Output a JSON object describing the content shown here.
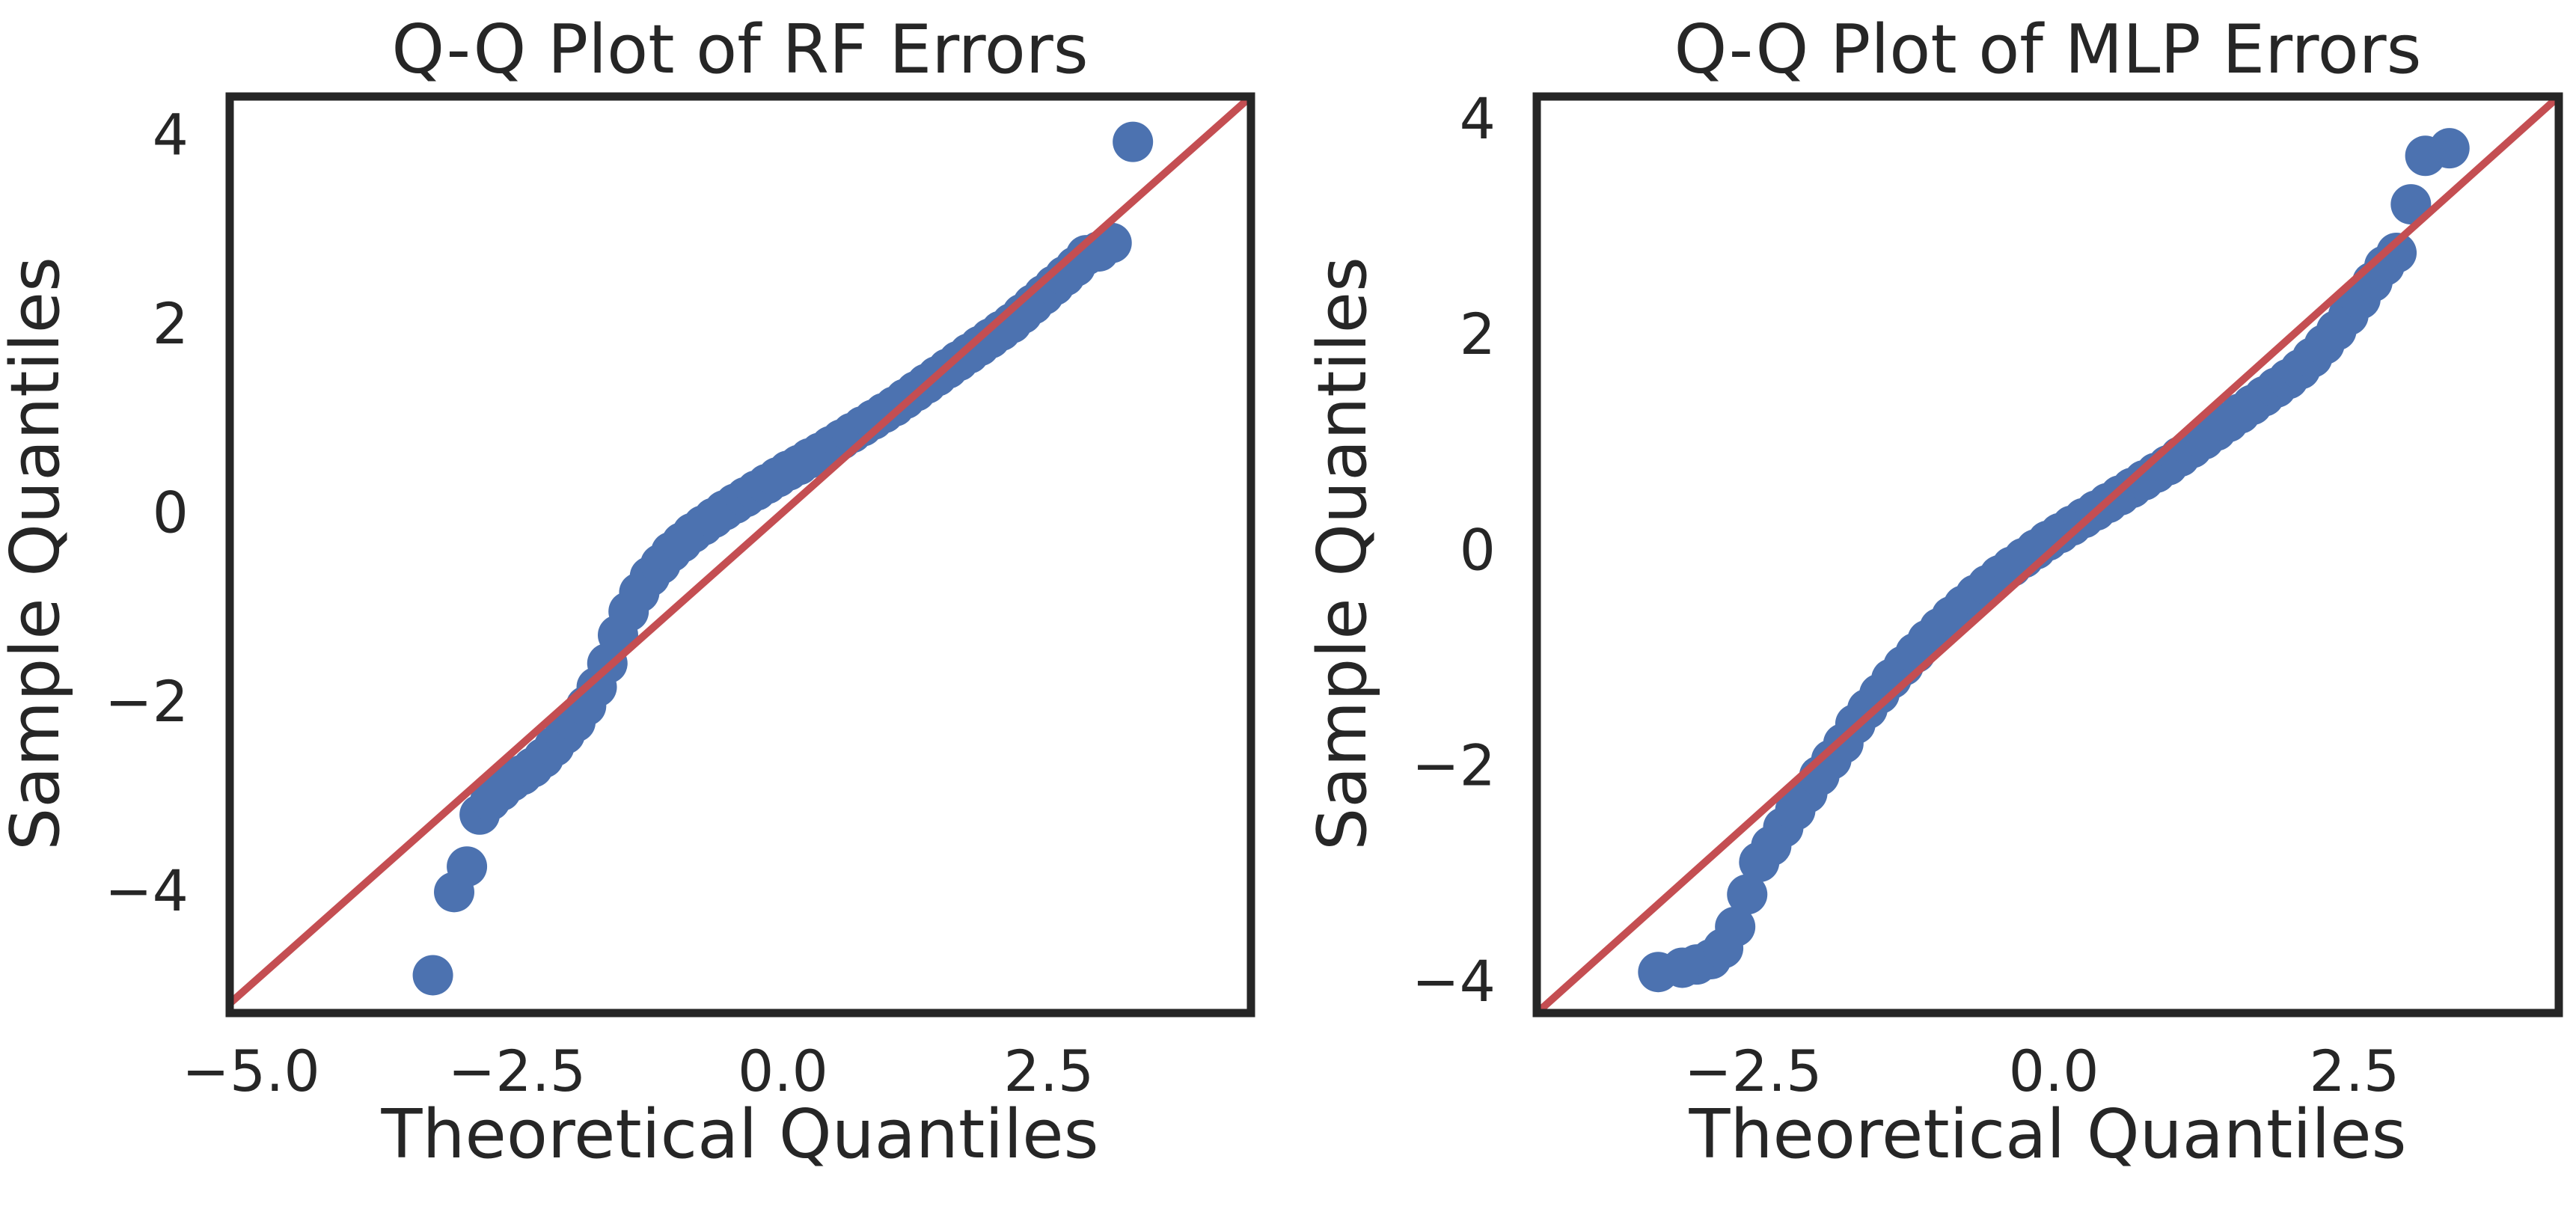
{
  "figure": {
    "background": "#ffffff",
    "axis_color": "#262626"
  },
  "chart_data": [
    {
      "type": "scatter",
      "title": "Q-Q Plot of RF Errors",
      "xlabel": "Theoretical Quantiles",
      "ylabel": "Sample Quantiles",
      "xlim": [
        -5.2,
        4.4
      ],
      "ylim": [
        -5.3,
        4.4
      ],
      "xticks": [
        -5.0,
        -2.5,
        0.0,
        2.5
      ],
      "xtick_labels": [
        "−5.0",
        "−2.5",
        "0.0",
        "2.5"
      ],
      "yticks": [
        -4,
        -2,
        0,
        2,
        4
      ],
      "ytick_labels": [
        "−4",
        "−2",
        "0",
        "2",
        "4"
      ],
      "grid": false,
      "point_color": "#4c72b0",
      "line_color": "#c44e52",
      "reference_line": {
        "slope": 1,
        "intercept": 0
      },
      "points": {
        "x": [
          -3.29,
          -3.09,
          -2.97,
          -2.85,
          -2.75,
          -2.65,
          -2.55,
          -2.45,
          -2.35,
          -2.25,
          -2.15,
          -2.05,
          -1.95,
          -1.85,
          -1.75,
          -1.65,
          -1.55,
          -1.45,
          -1.35,
          -1.25,
          -1.15,
          -1.05,
          -0.95,
          -0.85,
          -0.75,
          -0.65,
          -0.55,
          -0.45,
          -0.35,
          -0.25,
          -0.15,
          -0.05,
          0.05,
          0.15,
          0.25,
          0.35,
          0.45,
          0.55,
          0.65,
          0.75,
          0.85,
          0.95,
          1.05,
          1.15,
          1.25,
          1.35,
          1.45,
          1.55,
          1.65,
          1.75,
          1.85,
          1.95,
          2.05,
          2.15,
          2.25,
          2.35,
          2.45,
          2.55,
          2.65,
          2.75,
          2.85,
          2.97,
          3.09,
          3.29
        ],
        "y": [
          -4.9,
          -4.02,
          -3.75,
          -3.2,
          -3.05,
          -2.95,
          -2.85,
          -2.78,
          -2.7,
          -2.6,
          -2.48,
          -2.35,
          -2.22,
          -2.05,
          -1.85,
          -1.6,
          -1.3,
          -1.05,
          -0.85,
          -0.68,
          -0.55,
          -0.42,
          -0.32,
          -0.22,
          -0.14,
          -0.06,
          0.02,
          0.09,
          0.16,
          0.23,
          0.3,
          0.37,
          0.44,
          0.5,
          0.57,
          0.63,
          0.7,
          0.77,
          0.84,
          0.91,
          0.98,
          1.05,
          1.12,
          1.2,
          1.28,
          1.36,
          1.44,
          1.52,
          1.6,
          1.68,
          1.76,
          1.84,
          1.92,
          2.0,
          2.1,
          2.2,
          2.3,
          2.4,
          2.5,
          2.6,
          2.72,
          2.76,
          2.85,
          3.92
        ]
      }
    },
    {
      "type": "scatter",
      "title": "Q-Q Plot of MLP Errors",
      "xlabel": "Theoretical Quantiles",
      "ylabel": "Sample Quantiles",
      "xlim": [
        -4.3,
        4.2
      ],
      "ylim": [
        -4.3,
        4.2
      ],
      "xticks": [
        -2.5,
        0.0,
        2.5
      ],
      "xtick_labels": [
        "−2.5",
        "0.0",
        "2.5"
      ],
      "yticks": [
        -4,
        -2,
        0,
        2,
        4
      ],
      "ytick_labels": [
        "−4",
        "−2",
        "0",
        "2",
        "4"
      ],
      "grid": false,
      "point_color": "#4c72b0",
      "line_color": "#c44e52",
      "reference_line": {
        "slope": 1,
        "intercept": 0
      },
      "points": {
        "x": [
          -3.29,
          -3.09,
          -2.97,
          -2.85,
          -2.75,
          -2.65,
          -2.55,
          -2.45,
          -2.35,
          -2.25,
          -2.15,
          -2.05,
          -1.95,
          -1.85,
          -1.75,
          -1.65,
          -1.55,
          -1.45,
          -1.35,
          -1.25,
          -1.15,
          -1.05,
          -0.95,
          -0.85,
          -0.75,
          -0.65,
          -0.55,
          -0.45,
          -0.35,
          -0.25,
          -0.15,
          -0.05,
          0.05,
          0.15,
          0.25,
          0.35,
          0.45,
          0.55,
          0.65,
          0.75,
          0.85,
          0.95,
          1.05,
          1.15,
          1.25,
          1.35,
          1.45,
          1.55,
          1.65,
          1.75,
          1.85,
          1.95,
          2.05,
          2.15,
          2.25,
          2.35,
          2.45,
          2.55,
          2.65,
          2.75,
          2.85,
          2.97,
          3.09,
          3.29
        ],
        "y": [
          -3.92,
          -3.88,
          -3.85,
          -3.8,
          -3.7,
          -3.5,
          -3.2,
          -2.9,
          -2.75,
          -2.58,
          -2.42,
          -2.26,
          -2.1,
          -1.95,
          -1.8,
          -1.62,
          -1.48,
          -1.34,
          -1.2,
          -1.08,
          -0.96,
          -0.84,
          -0.73,
          -0.62,
          -0.52,
          -0.42,
          -0.33,
          -0.24,
          -0.16,
          -0.08,
          0.0,
          0.08,
          0.15,
          0.22,
          0.29,
          0.36,
          0.43,
          0.5,
          0.57,
          0.64,
          0.71,
          0.78,
          0.86,
          0.94,
          1.02,
          1.1,
          1.18,
          1.26,
          1.34,
          1.42,
          1.5,
          1.58,
          1.67,
          1.78,
          1.9,
          2.03,
          2.17,
          2.32,
          2.48,
          2.63,
          2.75,
          3.2,
          3.65,
          3.72
        ]
      }
    }
  ]
}
